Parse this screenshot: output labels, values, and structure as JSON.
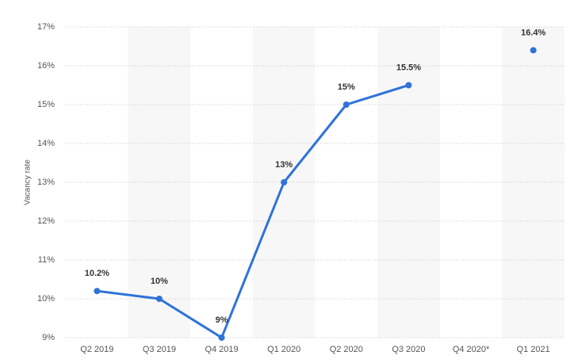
{
  "chart_data": {
    "type": "line",
    "y_label": "Vacancy rate",
    "categories": [
      "Q2 2019",
      "Q3 2019",
      "Q4 2019",
      "Q1 2020",
      "Q2 2020",
      "Q3 2020",
      "Q4 2020*",
      "Q1 2021"
    ],
    "series": [
      {
        "name": "Vacancy rate",
        "color": "#2f73d8",
        "values": [
          10.2,
          10,
          9,
          13,
          15,
          15.5,
          null,
          16.4
        ],
        "value_labels": [
          "10.2%",
          "10%",
          "9%",
          "13%",
          "15%",
          "15.5%",
          null,
          "16.4%"
        ]
      }
    ],
    "ylim": [
      9,
      17
    ],
    "yticks": [
      {
        "value": 9,
        "label": "9%"
      },
      {
        "value": 10,
        "label": "10%"
      },
      {
        "value": 11,
        "label": "11%"
      },
      {
        "value": 12,
        "label": "12%"
      },
      {
        "value": 13,
        "label": "13%"
      },
      {
        "value": 14,
        "label": "14%"
      },
      {
        "value": 15,
        "label": "15%"
      },
      {
        "value": 16,
        "label": "16%"
      },
      {
        "value": 17,
        "label": "17%"
      }
    ],
    "grid": true
  }
}
